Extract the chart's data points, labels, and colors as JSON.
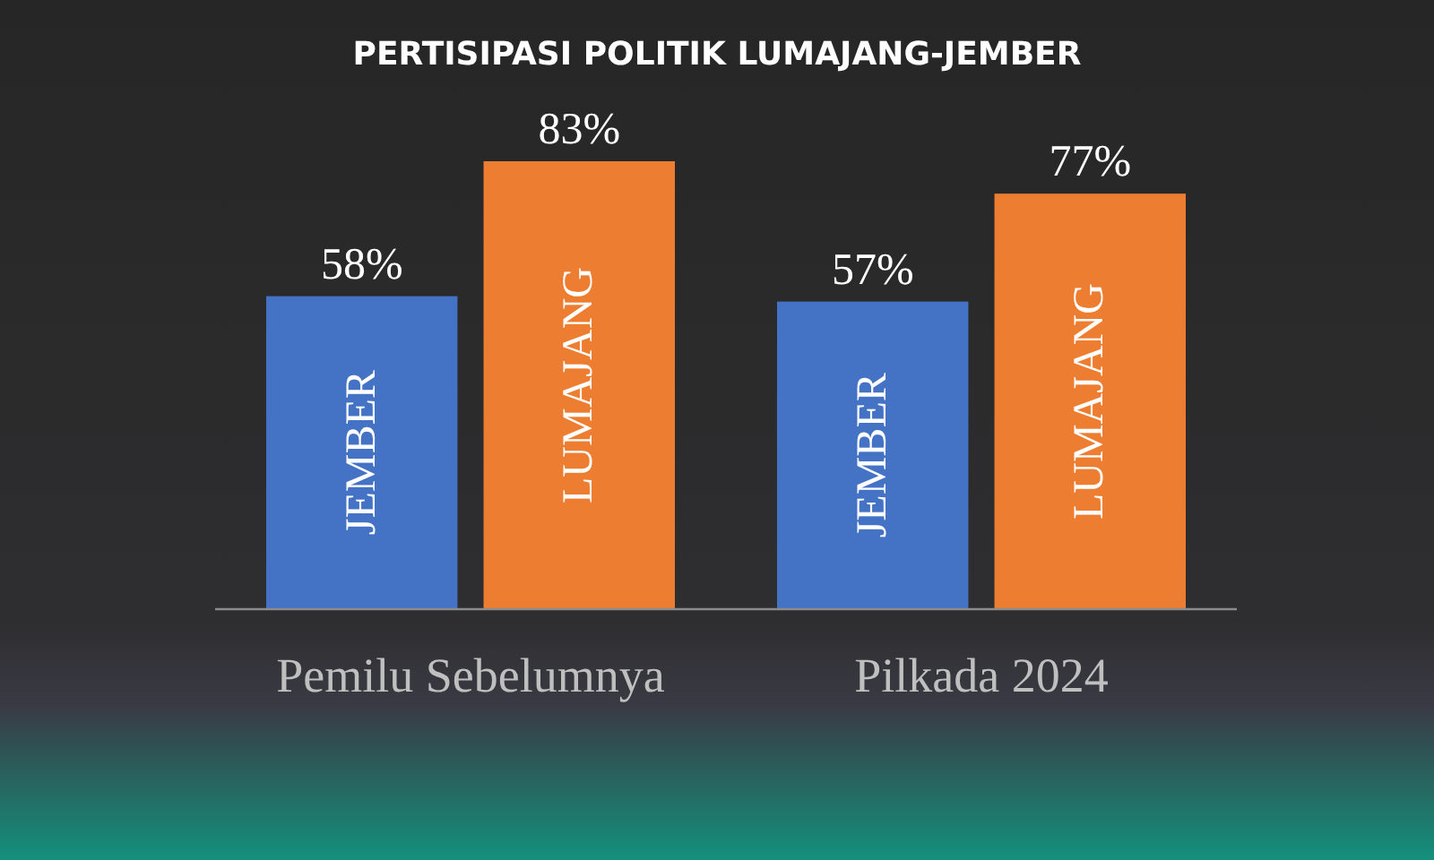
{
  "chart_data": {
    "type": "bar",
    "title": "PERTISIPASI POLITIK LUMAJANG-JEMBER",
    "categories": [
      "Pemilu Sebelumnya",
      "Pilkada 2024"
    ],
    "series": [
      {
        "name": "JEMBER",
        "color": "#4472c4",
        "values": [
          58,
          57
        ],
        "value_labels": [
          "58%",
          "57%"
        ]
      },
      {
        "name": "LUMAJANG",
        "color": "#ed7d31",
        "values": [
          83,
          77
        ],
        "value_labels": [
          "83%",
          "77%"
        ]
      }
    ],
    "tick_labels": "x",
    "legend": false
  }
}
